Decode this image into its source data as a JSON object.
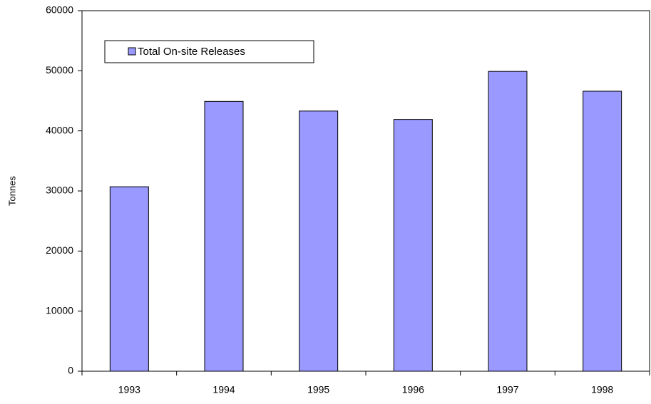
{
  "chart_data": {
    "type": "bar",
    "y_label": "Tonnes",
    "categories": [
      "1993",
      "1994",
      "1995",
      "1996",
      "1997",
      "1998"
    ],
    "series": [
      {
        "name": "Total On-site Releases",
        "color": "#9999ff",
        "values": [
          30700,
          44900,
          43300,
          41900,
          49900,
          46600
        ]
      }
    ],
    "ylim": [
      0,
      60000
    ],
    "yticks": [
      0,
      10000,
      20000,
      30000,
      40000,
      50000,
      60000
    ],
    "grid": false,
    "legend": "upper left"
  }
}
